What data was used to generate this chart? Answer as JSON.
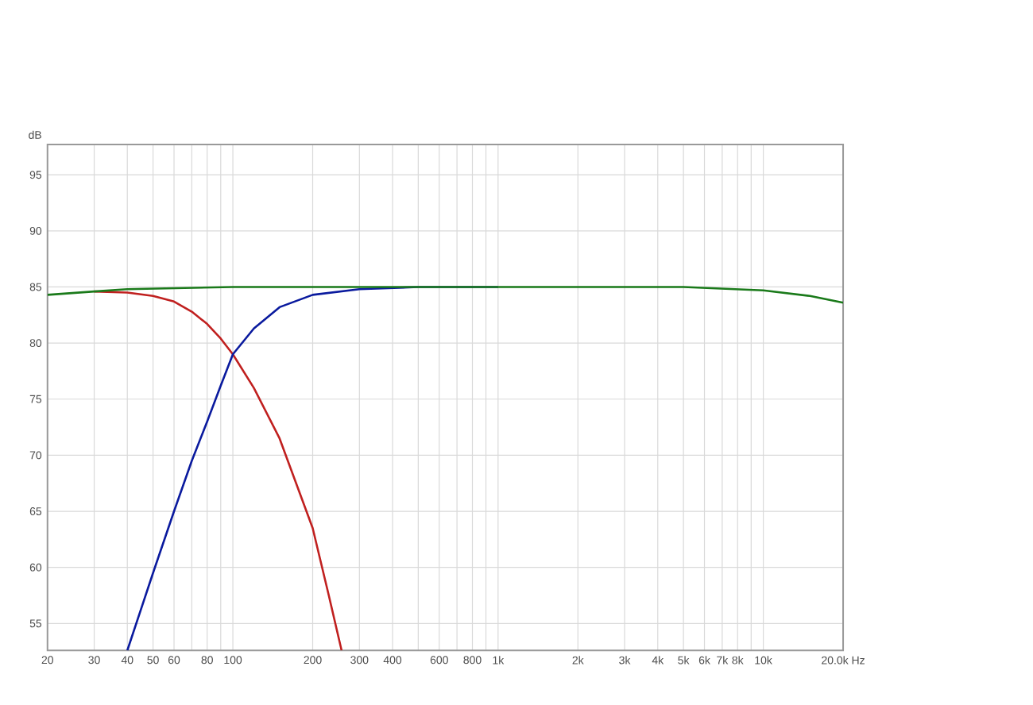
{
  "chart_data": {
    "type": "line",
    "ylabel": "dB",
    "log": "x",
    "grid": true,
    "xlim": [
      20,
      20000
    ],
    "ylim": [
      52.6,
      97.7
    ],
    "xticks": [
      20,
      30,
      40,
      50,
      60,
      {
        "value": 70,
        "label": null
      },
      80,
      {
        "value": 90,
        "label": null
      },
      100,
      200,
      300,
      400,
      {
        "value": 500,
        "label": null
      },
      600,
      {
        "value": 700,
        "label": null
      },
      800,
      {
        "value": 900,
        "label": null
      },
      {
        "value": 1000,
        "label": "1k"
      },
      {
        "value": 2000,
        "label": "2k"
      },
      {
        "value": 3000,
        "label": "3k"
      },
      {
        "value": 4000,
        "label": "4k"
      },
      {
        "value": 5000,
        "label": "5k"
      },
      {
        "value": 6000,
        "label": "6k"
      },
      {
        "value": 7000,
        "label": "7k"
      },
      {
        "value": 8000,
        "label": "8k"
      },
      {
        "value": 9000,
        "label": null
      },
      {
        "value": 10000,
        "label": "10k"
      },
      {
        "value": 20000,
        "label": "20.0k Hz"
      }
    ],
    "yticks": [
      55,
      60,
      65,
      70,
      75,
      80,
      85,
      90,
      95
    ],
    "series": [
      {
        "color": "#c0201f",
        "x": [
          30,
          40,
          50,
          60,
          70,
          80,
          90,
          100,
          120,
          150,
          200,
          230,
          257
        ],
        "values": [
          84.6,
          84.5,
          84.2,
          83.7,
          82.8,
          81.7,
          80.4,
          79,
          76,
          71.5,
          63.5,
          57.5,
          52.6
        ]
      },
      {
        "color": "#0a1a9e",
        "x": [
          40,
          50,
          60,
          70,
          80,
          90,
          100,
          120,
          150,
          200,
          300,
          500,
          1000
        ],
        "values": [
          52.6,
          59.5,
          65,
          69.5,
          73,
          76.2,
          79,
          81.3,
          83.2,
          84.3,
          84.8,
          85,
          85
        ]
      },
      {
        "color": "#1a7a1a",
        "x": [
          20,
          30,
          40,
          100,
          1000,
          5000,
          10000,
          15000,
          20000
        ],
        "values": [
          84.3,
          84.6,
          84.8,
          85,
          85,
          85,
          84.7,
          84.2,
          83.6
        ]
      }
    ]
  }
}
